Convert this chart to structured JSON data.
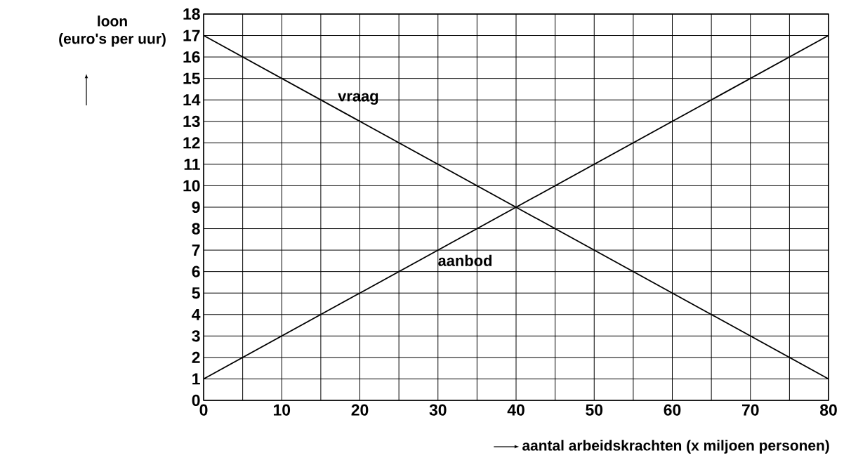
{
  "chart_data": {
    "type": "line",
    "xlabel": "aantal arbeidskrachten (x miljoen personen)",
    "ylabel": "loon (euro's per uur)",
    "x": [
      0,
      80
    ],
    "series": [
      {
        "name": "vraag",
        "color": "#000000",
        "values": [
          17,
          1
        ]
      },
      {
        "name": "aanbod",
        "color": "#000000",
        "values": [
          1,
          17
        ]
      }
    ],
    "xlim": [
      0,
      80
    ],
    "ylim": [
      0,
      18
    ],
    "xticks": [
      0,
      {
        "value": 5,
        "label": null
      },
      10,
      {
        "value": 15,
        "label": null
      },
      20,
      {
        "value": 25,
        "label": null
      },
      30,
      {
        "value": 35,
        "label": null
      },
      40,
      {
        "value": 45,
        "label": null
      },
      50,
      {
        "value": 55,
        "label": null
      },
      60,
      {
        "value": 65,
        "label": null
      },
      70,
      {
        "value": 75,
        "label": null
      },
      80
    ],
    "yticks": [
      0,
      1,
      2,
      3,
      4,
      5,
      6,
      7,
      8,
      9,
      10,
      11,
      12,
      13,
      14,
      15,
      16,
      17,
      18
    ],
    "grid": true,
    "marker": "none",
    "line_style": "solid"
  }
}
